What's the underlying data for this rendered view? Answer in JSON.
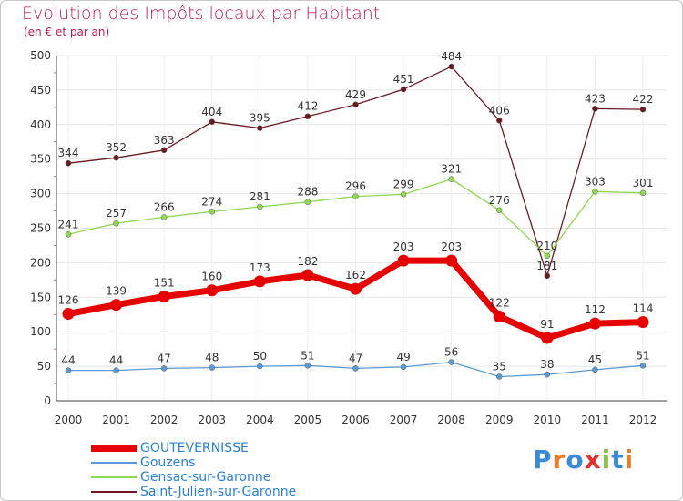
{
  "header": {
    "title": "Evolution des Impôts locaux par Habitant",
    "subtitle": "(en € et par an)"
  },
  "logo": {
    "text": "Proxiti"
  },
  "chart_data": {
    "type": "line",
    "title": "Evolution des Impôts locaux par Habitant",
    "subtitle": "(en € et par an)",
    "xlabel": "",
    "ylabel": "",
    "categories": [
      "2000",
      "2001",
      "2002",
      "2003",
      "2004",
      "2005",
      "2006",
      "2007",
      "2008",
      "2009",
      "2010",
      "2011",
      "2012"
    ],
    "ylim": [
      0,
      500
    ],
    "yticks": [
      "0",
      "50",
      "100",
      "150",
      "200",
      "250",
      "300",
      "350",
      "400",
      "450",
      "500"
    ],
    "grid": true,
    "legend_position": "bottom-left",
    "series": [
      {
        "name": "GOUTEVERNISSE",
        "color": "#e60000",
        "bold": true,
        "values": [
          126,
          139,
          151,
          160,
          173,
          182,
          162,
          203,
          203,
          122,
          91,
          112,
          114
        ]
      },
      {
        "name": "Gouzens",
        "color": "#5b9bd5",
        "bold": false,
        "values": [
          44,
          44,
          47,
          48,
          50,
          51,
          47,
          49,
          56,
          35,
          38,
          45,
          51
        ]
      },
      {
        "name": "Gensac-sur-Garonne",
        "color": "#8fd84f",
        "bold": false,
        "values": [
          241,
          257,
          266,
          274,
          281,
          288,
          296,
          299,
          321,
          276,
          210,
          303,
          301
        ]
      },
      {
        "name": "Saint-Julien-sur-Garonne",
        "color": "#6b1a22",
        "bold": false,
        "values": [
          344,
          352,
          363,
          404,
          395,
          412,
          429,
          451,
          484,
          406,
          181,
          423,
          422
        ]
      }
    ]
  }
}
